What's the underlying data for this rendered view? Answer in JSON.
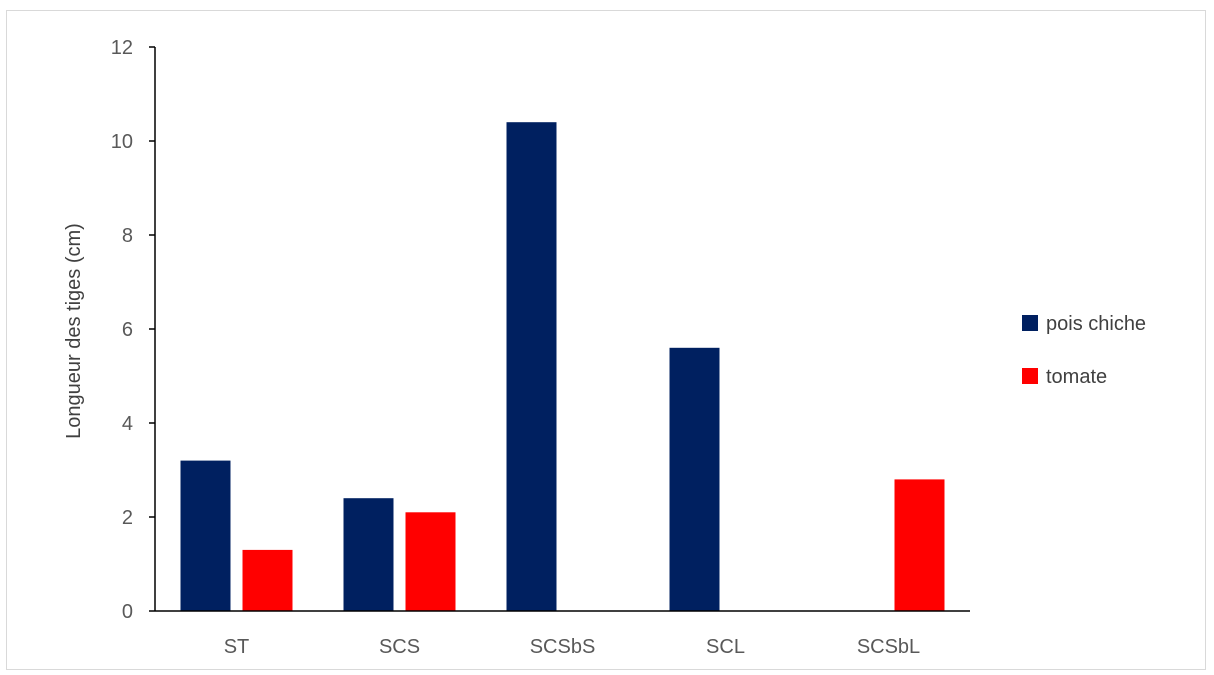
{
  "chart_data": {
    "type": "bar",
    "title": "",
    "xlabel": "",
    "ylabel": "Longueur des tiges (cm)",
    "categories": [
      "ST",
      "SCS",
      "SCSbS",
      "SCL",
      "SCSbL"
    ],
    "ylim": [
      0,
      12
    ],
    "yticks": [
      0,
      2,
      4,
      6,
      8,
      10,
      12
    ],
    "grid": false,
    "legend_position": "right",
    "series": [
      {
        "name": "pois chiche",
        "color": "#002060",
        "values": [
          3.2,
          2.4,
          10.4,
          5.6,
          0
        ]
      },
      {
        "name": "tomate",
        "color": "#ff0000",
        "values": [
          1.3,
          2.1,
          0,
          0,
          2.8
        ]
      }
    ]
  }
}
